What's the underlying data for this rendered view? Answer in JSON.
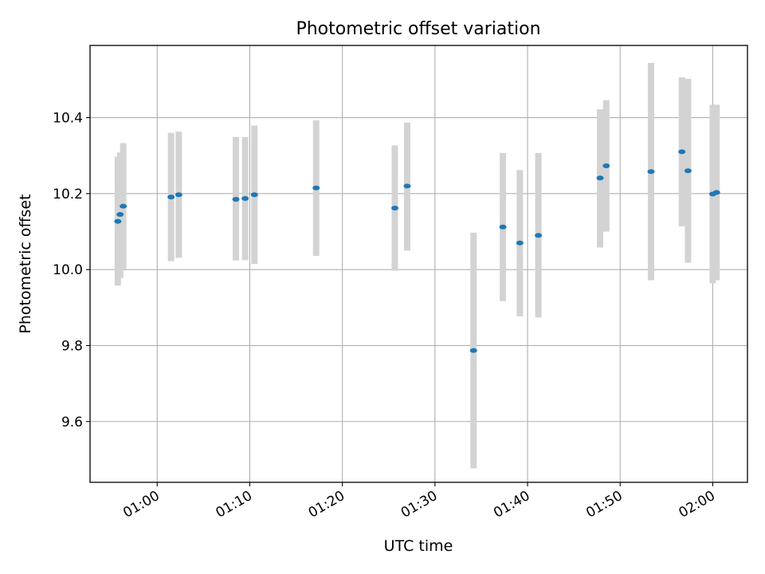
{
  "chart_data": {
    "type": "scatter",
    "title": "Photometric offset variation",
    "xlabel": "UTC time",
    "ylabel": "Photometric offset",
    "x_unit": "time of day (HH:MM:SS)",
    "xlim": [
      "00:52:45",
      "02:03:45"
    ],
    "ylim": [
      9.44,
      10.59
    ],
    "x_ticks": [
      "01:00",
      "01:10",
      "01:20",
      "01:30",
      "01:40",
      "01:50",
      "02:00"
    ],
    "y_ticks": [
      "9.6",
      "9.8",
      "10.0",
      "10.2",
      "10.4"
    ],
    "grid": true,
    "marker_color": "#1f77b4",
    "errorbar_color": "#d3d3d3",
    "points": [
      {
        "t": "00:55:45",
        "y": 10.127,
        "lo": 9.958,
        "hi": 10.297
      },
      {
        "t": "00:56:00",
        "y": 10.145,
        "lo": 9.978,
        "hi": 10.308
      },
      {
        "t": "00:56:20",
        "y": 10.167,
        "lo": 10.001,
        "hi": 10.333
      },
      {
        "t": "01:01:30",
        "y": 10.191,
        "lo": 10.022,
        "hi": 10.36
      },
      {
        "t": "01:02:20",
        "y": 10.197,
        "lo": 10.031,
        "hi": 10.363
      },
      {
        "t": "01:08:30",
        "y": 10.185,
        "lo": 10.024,
        "hi": 10.349
      },
      {
        "t": "01:09:30",
        "y": 10.187,
        "lo": 10.025,
        "hi": 10.349
      },
      {
        "t": "01:10:30",
        "y": 10.197,
        "lo": 10.015,
        "hi": 10.379
      },
      {
        "t": "01:17:10",
        "y": 10.215,
        "lo": 10.036,
        "hi": 10.393
      },
      {
        "t": "01:25:40",
        "y": 10.162,
        "lo": 9.997,
        "hi": 10.327
      },
      {
        "t": "01:27:00",
        "y": 10.22,
        "lo": 10.05,
        "hi": 10.387
      },
      {
        "t": "01:34:10",
        "y": 9.787,
        "lo": 9.477,
        "hi": 10.097
      },
      {
        "t": "01:37:20",
        "y": 10.112,
        "lo": 9.917,
        "hi": 10.307
      },
      {
        "t": "01:39:10",
        "y": 10.07,
        "lo": 9.877,
        "hi": 10.262
      },
      {
        "t": "01:41:10",
        "y": 10.09,
        "lo": 9.874,
        "hi": 10.307
      },
      {
        "t": "01:47:50",
        "y": 10.241,
        "lo": 10.058,
        "hi": 10.422
      },
      {
        "t": "01:48:30",
        "y": 10.273,
        "lo": 10.1,
        "hi": 10.446
      },
      {
        "t": "01:53:20",
        "y": 10.258,
        "lo": 9.972,
        "hi": 10.544
      },
      {
        "t": "01:56:40",
        "y": 10.31,
        "lo": 10.114,
        "hi": 10.506
      },
      {
        "t": "01:57:20",
        "y": 10.26,
        "lo": 10.018,
        "hi": 10.502
      },
      {
        "t": "02:00:00",
        "y": 10.199,
        "lo": 9.964,
        "hi": 10.434
      },
      {
        "t": "02:00:25",
        "y": 10.203,
        "lo": 9.972,
        "hi": 10.434
      }
    ]
  }
}
